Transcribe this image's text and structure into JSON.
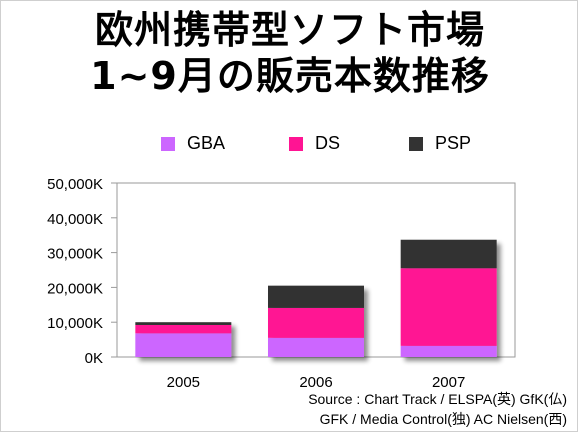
{
  "title": {
    "line1": "欧州携帯型ソフト市場",
    "line2": "1~9月の販売本数推移"
  },
  "source": {
    "line1": "Source : Chart Track / ELSPA(英) GfK(仏)",
    "line2": "GFK / Media Control(独) AC Nielsen(西)"
  },
  "chart_data": {
    "type": "bar",
    "stacked": true,
    "categories": [
      "2005",
      "2006",
      "2007"
    ],
    "series": [
      {
        "name": "GBA",
        "color": "#cc66ff",
        "values": [
          6800,
          5500,
          3200
        ]
      },
      {
        "name": "DS",
        "color": "#ff1493",
        "values": [
          2400,
          8600,
          22300
        ]
      },
      {
        "name": "PSP",
        "color": "#333333",
        "values": [
          800,
          6400,
          8200
        ]
      }
    ],
    "ylim": [
      0,
      50000
    ],
    "yticks": [
      0,
      10000,
      20000,
      30000,
      40000,
      50000
    ],
    "ytick_labels": [
      "0K",
      "10,000K",
      "20,000K",
      "30,000K",
      "40,000K",
      "50,000K"
    ],
    "legend_position": "top",
    "grid": false
  }
}
